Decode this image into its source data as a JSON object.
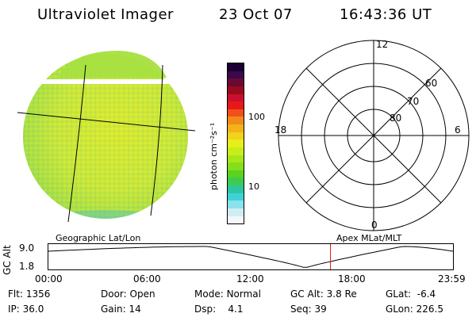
{
  "header": {
    "instrument": "Ultraviolet Imager",
    "date": "23 Oct 07",
    "time": "16:43:36 UT"
  },
  "imager": {
    "caption": "Geographic Lat/Lon"
  },
  "colorbar": {
    "unit_label": "photon cm⁻²s⁻¹",
    "tick_100": "100",
    "tick_10": "10",
    "colors": [
      "#1a0033",
      "#3b0a4a",
      "#6a0a32",
      "#9a0a1e",
      "#c8102e",
      "#e8181a",
      "#f2501a",
      "#f28a1a",
      "#f2b21a",
      "#f2d21a",
      "#e8ee1a",
      "#c8ee1a",
      "#a8e61a",
      "#86de1a",
      "#5ad21e",
      "#3ecb52",
      "#2ec6a0",
      "#3ed2d8",
      "#8ae2ea",
      "#cfeef2",
      "#f4f8fa"
    ]
  },
  "polar": {
    "labels": {
      "top": "12",
      "right": "6",
      "left": "18",
      "bottom": "0"
    },
    "rings": [
      "60",
      "70",
      "80"
    ],
    "caption": "Apex  MLat/MLT"
  },
  "altplot": {
    "ylabel": "GC Alt",
    "y_top": "9.0",
    "y_bottom": "1.8",
    "x_ticks": [
      "00:00",
      "06:00",
      "12:00",
      "18:00",
      "23:59"
    ],
    "marker_hours": 16.73,
    "marker_color": "#e02020"
  },
  "status": {
    "row1": [
      {
        "label": "Flt:",
        "value": "1356"
      },
      {
        "label": "Door:",
        "value": "Open"
      },
      {
        "label": "Mode:",
        "value": "Normal"
      },
      {
        "label": "GC Alt:",
        "value": "3.8 Re"
      },
      {
        "label": "GLat:",
        "value": "-6.4"
      }
    ],
    "row2": [
      {
        "label": "IP:",
        "value": "36.0"
      },
      {
        "label": "Gain:",
        "value": "14"
      },
      {
        "label": "Dsp:",
        "value": "4.1"
      },
      {
        "label": "Seq:",
        "value": "39"
      },
      {
        "label": "GLon:",
        "value": "226.5"
      }
    ]
  }
}
